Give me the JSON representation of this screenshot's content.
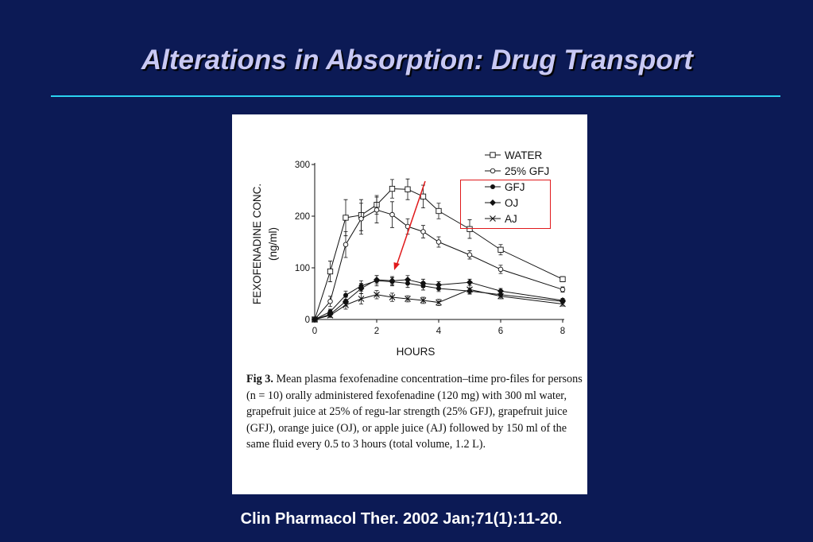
{
  "slide": {
    "title": "Alterations in Absorption: Drug Transport",
    "citation": "Clin Pharmacol Ther. 2002 Jan;71(1):11-20.",
    "colors": {
      "background": "#0c1a55",
      "rule": "#2ad3f0",
      "title": "#c9c9f4",
      "highlight": "#e0191b"
    }
  },
  "figure": {
    "caption_label": "Fig 3.",
    "caption_text": " Mean plasma fexofenadine concentration–time pro-files for persons (n = 10) orally administered fexofenadine (120 mg) with 300 ml water, grapefruit juice at 25% of regu-lar strength (25% GFJ), grapefruit juice (GFJ), orange juice (OJ), or apple juice (AJ) followed by 150 ml of the same fluid every 0.5 to 3 hours (total volume, 1.2 L)."
  },
  "chart_data": {
    "type": "line",
    "xlabel": "HOURS",
    "ylabel_line1": "FEXOFENADINE CONC.",
    "ylabel_line2": "(ng/ml)",
    "xlim": [
      0,
      8
    ],
    "ylim": [
      0,
      300
    ],
    "x_ticks": [
      0,
      2,
      4,
      6,
      8
    ],
    "y_ticks": [
      0,
      100,
      200,
      300
    ],
    "grid": false,
    "legend_position": "top-right",
    "series": [
      {
        "name": "WATER",
        "marker": "open-square",
        "x": [
          0,
          0.5,
          1,
          1.5,
          2,
          2.5,
          3,
          3.5,
          4,
          5,
          6,
          8
        ],
        "y": [
          0,
          93,
          197,
          202,
          222,
          253,
          252,
          238,
          210,
          175,
          135,
          78
        ],
        "err": [
          0,
          20,
          35,
          30,
          18,
          18,
          20,
          22,
          15,
          18,
          10,
          5
        ]
      },
      {
        "name": "25% GFJ",
        "marker": "open-circle",
        "x": [
          0,
          0.5,
          1,
          1.5,
          2,
          2.5,
          3,
          3.5,
          4,
          5,
          6,
          8
        ],
        "y": [
          0,
          35,
          145,
          195,
          212,
          203,
          180,
          170,
          150,
          125,
          97,
          58
        ],
        "err": [
          0,
          10,
          25,
          30,
          25,
          25,
          15,
          12,
          10,
          8,
          8,
          5
        ]
      },
      {
        "name": "GFJ",
        "marker": "filled-circle",
        "x": [
          0,
          0.5,
          1,
          1.5,
          2,
          2.5,
          3,
          3.5,
          4,
          5,
          6,
          8
        ],
        "y": [
          0,
          15,
          47,
          65,
          75,
          73,
          70,
          65,
          60,
          55,
          48,
          35
        ],
        "err": [
          0,
          5,
          8,
          10,
          10,
          8,
          8,
          8,
          6,
          6,
          5,
          4
        ]
      },
      {
        "name": "OJ",
        "marker": "filled-diamond",
        "x": [
          0,
          0.5,
          1,
          1.5,
          2,
          2.5,
          3,
          3.5,
          4,
          5,
          6,
          8
        ],
        "y": [
          0,
          10,
          35,
          60,
          77,
          75,
          77,
          70,
          67,
          72,
          55,
          37
        ],
        "err": [
          0,
          5,
          8,
          10,
          8,
          8,
          8,
          8,
          6,
          6,
          5,
          4
        ]
      },
      {
        "name": "AJ",
        "marker": "cross",
        "x": [
          0,
          0.5,
          1,
          1.5,
          2,
          2.5,
          3,
          3.5,
          4,
          5,
          6,
          8
        ],
        "y": [
          0,
          8,
          28,
          40,
          48,
          43,
          40,
          37,
          33,
          58,
          45,
          30
        ],
        "err": [
          0,
          4,
          8,
          10,
          8,
          8,
          6,
          6,
          6,
          8,
          5,
          4
        ]
      }
    ]
  }
}
